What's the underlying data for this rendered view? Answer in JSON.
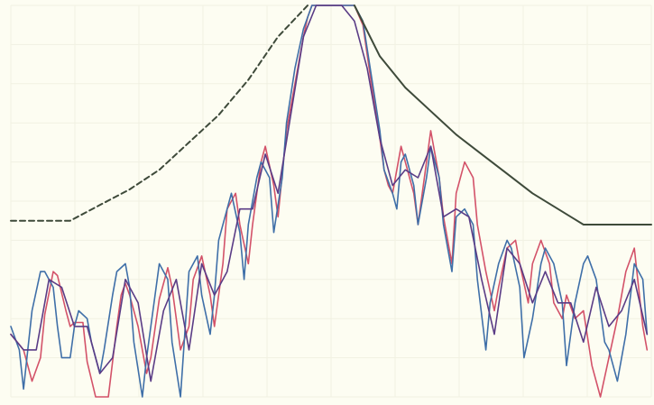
{
  "chart_data": {
    "type": "line",
    "title": "",
    "xlabel": "",
    "ylabel": "",
    "grid": true,
    "legend": "none",
    "xlim": [
      -75,
      76
    ],
    "ylim": [
      -50,
      0
    ],
    "ytick_labels": [],
    "series": [
      {
        "color": "#d35269",
        "x": [
          -75,
          -72,
          -70,
          -68,
          -67,
          -65,
          -64,
          -62,
          -61,
          -60,
          -58,
          -57,
          -55,
          -52,
          -50,
          -49,
          -48,
          -47,
          -45,
          -43,
          -42,
          -40,
          -38,
          -37,
          -35,
          -33,
          -32,
          -30,
          -28,
          -27,
          -25,
          -24,
          -22,
          -21,
          -19,
          -18,
          -16,
          -15,
          -13,
          -12,
          -10,
          -8,
          -6,
          -5,
          -4,
          -3,
          -2,
          0,
          2,
          3,
          5,
          6,
          8,
          10,
          12,
          13,
          14,
          15,
          17,
          18,
          20,
          21,
          23,
          24,
          26,
          27,
          29,
          30,
          32,
          34,
          35,
          37,
          39,
          40,
          42,
          44,
          45,
          47,
          48,
          50,
          52,
          53,
          55,
          56,
          58,
          60,
          62,
          64,
          66,
          68,
          70,
          72,
          74,
          75
        ],
        "y": [
          -42,
          -44,
          -48,
          -45,
          -39.5,
          -34,
          -34.5,
          -39,
          -41,
          -40.5,
          -40.5,
          -45.5,
          -50,
          -50,
          -41,
          -37,
          -35.5,
          -37,
          -41,
          -47,
          -45,
          -37.5,
          -33.5,
          -36,
          -44,
          -41,
          -35,
          -32,
          -37,
          -41,
          -33,
          -26,
          -24,
          -28,
          -33,
          -28,
          -20,
          -18,
          -23,
          -27,
          -16,
          -10,
          -4,
          -1.5,
          0,
          0,
          0,
          0,
          0,
          0,
          0,
          0,
          -2.5,
          -10,
          -17,
          -21,
          -23,
          -24,
          -18,
          -20,
          -24,
          -28,
          -20,
          -16,
          -22,
          -27,
          -33,
          -24,
          -20,
          -22,
          -28,
          -34,
          -39,
          -36,
          -31,
          -30,
          -33,
          -38,
          -33,
          -30,
          -33,
          -38,
          -40,
          -37,
          -40,
          -39,
          -46,
          -50,
          -45,
          -40,
          -34,
          -31,
          -41,
          -44
        ]
      },
      {
        "color": "#3f6fa8",
        "x": [
          -75,
          -73,
          -72,
          -71,
          -70,
          -68,
          -67,
          -65,
          -64,
          -63,
          -61,
          -60,
          -59,
          -57,
          -56,
          -54,
          -53,
          -51,
          -50,
          -48,
          -47,
          -46,
          -44,
          -43,
          -41,
          -40,
          -38,
          -37,
          -35,
          -34,
          -33,
          -31,
          -30,
          -28,
          -27,
          -26,
          -24,
          -23,
          -21,
          -20,
          -19,
          -17,
          -16,
          -14,
          -13,
          -11,
          -10,
          -8,
          -6,
          -5,
          -4,
          -3,
          -2,
          0,
          2,
          3,
          5,
          6,
          8,
          10,
          12,
          13,
          15,
          16,
          17,
          18,
          20,
          21,
          23,
          24,
          26,
          27,
          29,
          30,
          32,
          34,
          35,
          37,
          38,
          40,
          42,
          43,
          45,
          46,
          48,
          50,
          51,
          53,
          55,
          56,
          58,
          60,
          61,
          63,
          65,
          66,
          68,
          70,
          72,
          74,
          75
        ],
        "y": [
          -41,
          -44,
          -49,
          -44,
          -39,
          -34,
          -34,
          -36,
          -41,
          -45,
          -45,
          -41,
          -39,
          -40,
          -43,
          -47,
          -44,
          -37,
          -34,
          -33,
          -36,
          -43,
          -50,
          -45,
          -37,
          -33,
          -35,
          -43,
          -50,
          -42,
          -34,
          -32,
          -37,
          -42,
          -37,
          -30,
          -26,
          -24,
          -29,
          -35,
          -28,
          -22,
          -20,
          -22,
          -29,
          -22,
          -15,
          -8,
          -3,
          -1.5,
          0,
          0,
          0,
          0,
          0,
          0,
          0,
          0,
          -2,
          -9,
          -16,
          -21,
          -24,
          -26,
          -20,
          -19,
          -23,
          -28,
          -22,
          -18,
          -22,
          -28,
          -34,
          -27,
          -26,
          -28,
          -35,
          -44,
          -38,
          -33,
          -30,
          -31,
          -36,
          -45,
          -40,
          -33,
          -31,
          -33,
          -38,
          -46,
          -38,
          -33,
          -32,
          -35,
          -43,
          -44,
          -48,
          -42,
          -33,
          -35,
          -42
        ]
      },
      {
        "color": "#5a3c86",
        "x": [
          -75,
          -72,
          -69,
          -66,
          -63,
          -60,
          -57,
          -54,
          -51,
          -48,
          -45,
          -42,
          -39,
          -36,
          -33,
          -30,
          -27,
          -24,
          -21,
          -18,
          -15,
          -12,
          -9,
          -6,
          -3,
          0,
          3,
          6,
          9,
          12,
          15,
          18,
          21,
          24,
          27,
          30,
          33,
          36,
          39,
          42,
          45,
          48,
          51,
          54,
          57,
          60,
          63,
          66,
          69,
          72,
          75
        ],
        "y": [
          -42,
          -44,
          -44,
          -35,
          -36,
          -41,
          -41,
          -47,
          -45,
          -35,
          -38,
          -48,
          -39,
          -35,
          -44,
          -33,
          -37,
          -34,
          -26,
          -26,
          -19,
          -24,
          -14,
          -4,
          0,
          0,
          0,
          -2,
          -8,
          -17,
          -23,
          -21,
          -22,
          -18,
          -27,
          -26,
          -27,
          -35,
          -42,
          -31,
          -33,
          -38,
          -34,
          -38,
          -38,
          -43,
          -36,
          -41,
          -39,
          -35,
          -42
        ]
      },
      {
        "color": "#3e4a3a",
        "dashed": true,
        "x": [
          -75,
          -68,
          -61,
          -54,
          -47,
          -40,
          -33,
          -26,
          -19,
          -12,
          -5
        ],
        "y": [
          -27.5,
          -27.5,
          -27.5,
          -25.5,
          -23.5,
          -21,
          -17.5,
          -14,
          -9.5,
          -4,
          0
        ]
      },
      {
        "color": "#3e4a3a",
        "dashed": false,
        "x": [
          6,
          12,
          18,
          24,
          30,
          36,
          42,
          48,
          54,
          60,
          66,
          72,
          76
        ],
        "y": [
          0,
          -6.5,
          -10.5,
          -13.5,
          -16.5,
          -19,
          -21.5,
          -24,
          -26,
          -28,
          -28,
          -28,
          -28
        ]
      }
    ],
    "annotations": [
      {
        "text": "",
        "x": -22,
        "y": -17.3
      },
      {
        "text": "",
        "x": 21,
        "y": -17.3
      }
    ]
  }
}
